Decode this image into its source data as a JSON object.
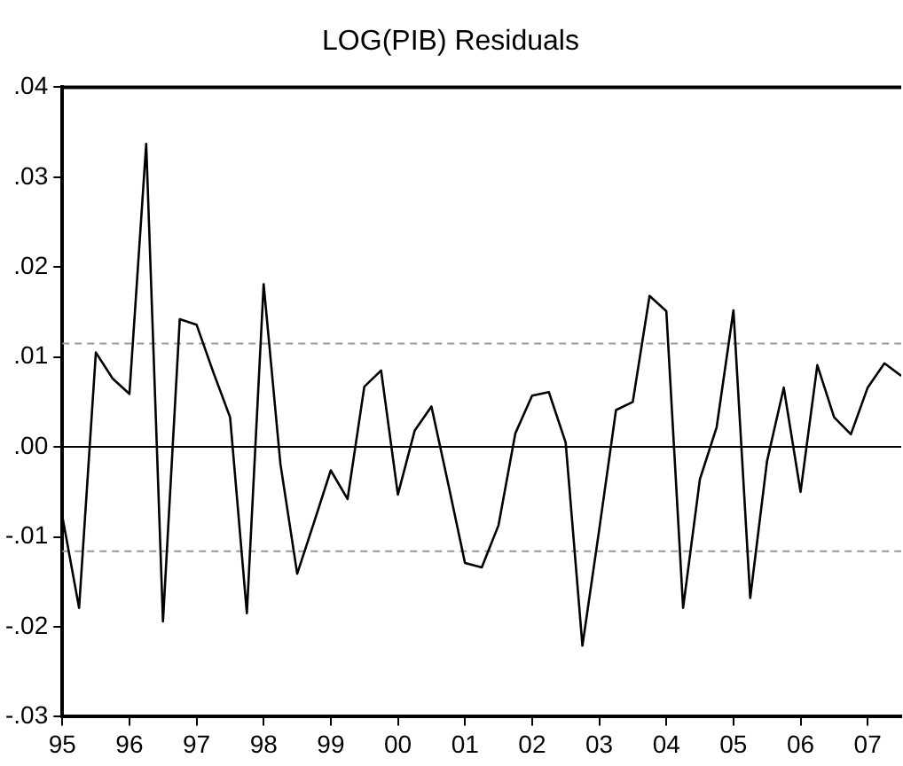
{
  "chart_data": {
    "type": "line",
    "title": "LOG(PIB) Residuals",
    "x": [
      1995,
      1995.25,
      1995.5,
      1995.75,
      1996,
      1996.25,
      1996.5,
      1996.75,
      1997,
      1997.25,
      1997.5,
      1997.75,
      1998,
      1998.25,
      1998.5,
      1998.75,
      1999,
      1999.25,
      1999.5,
      1999.75,
      2000,
      2000.25,
      2000.5,
      2000.75,
      2001,
      2001.25,
      2001.5,
      2001.75,
      2002,
      2002.25,
      2002.5,
      2002.75,
      2003,
      2003.25,
      2003.5,
      2003.75,
      2004,
      2004.25,
      2004.5,
      2004.75,
      2005,
      2005.25,
      2005.5,
      2005.75,
      2006,
      2006.25,
      2006.5,
      2006.75,
      2007,
      2007.25,
      2007.5
    ],
    "series": [
      {
        "color": "#000000",
        "values": [
          -0.0077,
          -0.0179,
          0.0105,
          0.0076,
          0.0059,
          0.0337,
          -0.0194,
          0.0142,
          0.0136,
          0.0083,
          0.0033,
          -0.0185,
          0.0181,
          -0.0019,
          -0.0141,
          -0.0084,
          -0.0026,
          -0.0058,
          0.0067,
          0.0085,
          -0.0053,
          0.0018,
          0.0045,
          -0.0041,
          -0.0129,
          -0.0134,
          -0.0087,
          0.0015,
          0.0057,
          0.0061,
          0.0005,
          -0.0221,
          -0.0092,
          0.0041,
          0.005,
          0.0168,
          0.0151,
          -0.0179,
          -0.0036,
          0.0022,
          0.0152,
          -0.0168,
          -0.0016,
          0.0066,
          -0.005,
          0.0091,
          0.0033,
          0.0014,
          0.0066,
          0.0093,
          0.0079
        ]
      }
    ],
    "xlim": [
      1995,
      2007.5
    ],
    "xticks": [
      {
        "value": 1995,
        "label": "95"
      },
      {
        "value": 1996,
        "label": "96"
      },
      {
        "value": 1997,
        "label": "97"
      },
      {
        "value": 1998,
        "label": "98"
      },
      {
        "value": 1999,
        "label": "99"
      },
      {
        "value": 2000,
        "label": "00"
      },
      {
        "value": 2001,
        "label": "01"
      },
      {
        "value": 2002,
        "label": "02"
      },
      {
        "value": 2003,
        "label": "03"
      },
      {
        "value": 2004,
        "label": "04"
      },
      {
        "value": 2005,
        "label": "05"
      },
      {
        "value": 2006,
        "label": "06"
      },
      {
        "value": 2007,
        "label": "07"
      }
    ],
    "ylim": [
      -0.03,
      0.04
    ],
    "yticks": [
      {
        "value": -0.03,
        "label": "-.03"
      },
      {
        "value": -0.02,
        "label": "-.02"
      },
      {
        "value": -0.01,
        "label": "-.01"
      },
      {
        "value": 0,
        "label": ".00"
      },
      {
        "value": 0.01,
        "label": ".01"
      },
      {
        "value": 0.02,
        "label": ".02"
      },
      {
        "value": 0.03,
        "label": ".03"
      },
      {
        "value": 0.04,
        "label": ".04"
      }
    ],
    "ref_lines": [
      {
        "axis": "y",
        "value": 0,
        "color": "#000000",
        "line_style": "solid"
      },
      {
        "axis": "y",
        "value": 0.0115,
        "color": "#999999",
        "line_style": "dashed"
      },
      {
        "axis": "y",
        "value": -0.0116,
        "color": "#999999",
        "line_style": "dashed"
      }
    ],
    "grid": false,
    "marker": "none",
    "line_style": "solid"
  }
}
